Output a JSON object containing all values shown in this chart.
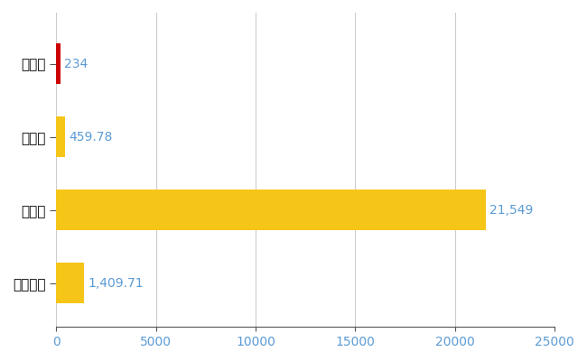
{
  "categories": [
    "釧路町",
    "県平均",
    "県最大",
    "全国平均"
  ],
  "values": [
    234,
    459.78,
    21549,
    1409.71
  ],
  "bar_colors": [
    "#cc0000",
    "#f5c518",
    "#f5c518",
    "#f5c518"
  ],
  "bar_labels": [
    "234",
    "459.78",
    "21,549",
    "1,409.71"
  ],
  "xlim": [
    0,
    25000
  ],
  "xticks": [
    0,
    5000,
    10000,
    15000,
    20000,
    25000
  ],
  "xtick_labels": [
    "0",
    "5000",
    "10000",
    "15000",
    "20000",
    "25000"
  ],
  "background_color": "#ffffff",
  "grid_color": "#cccccc",
  "tick_label_color": "#5b9bd5",
  "label_fontsize": 11,
  "tick_fontsize": 10,
  "bar_height": 0.55
}
